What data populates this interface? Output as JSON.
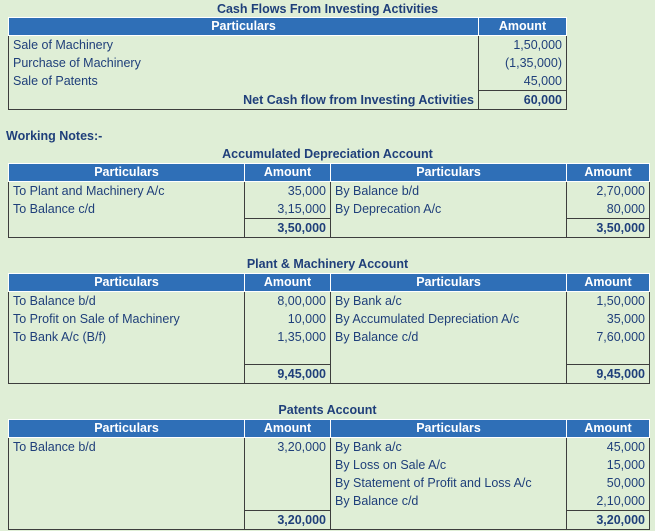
{
  "cash_flow": {
    "title": "Cash Flows From  Investing Activities",
    "headers": [
      "Particulars",
      "Amount"
    ],
    "rows": [
      {
        "particular": "Sale of Machinery",
        "amount": "1,50,000"
      },
      {
        "particular": "Purchase of Machinery",
        "amount": "(1,35,000)"
      },
      {
        "particular": "Sale of Patents",
        "amount": "45,000"
      }
    ],
    "net_label": "Net Cash flow from Investing Activities",
    "net_amount": "60,000"
  },
  "working_notes_label": "Working Notes:-",
  "accumulated_depreciation": {
    "title": "Accumulated Depreciation Account",
    "headers": [
      "Particulars",
      "Amount",
      "Particulars",
      "Amount"
    ],
    "rows": [
      {
        "dr_particular": "To Plant and Machinery A/c",
        "dr_amount": "35,000",
        "cr_particular": "By Balance b/d",
        "cr_amount": "2,70,000"
      },
      {
        "dr_particular": "To Balance c/d",
        "dr_amount": "3,15,000",
        "cr_particular": "By Deprecation A/c",
        "cr_amount": "80,000"
      }
    ],
    "dr_total": "3,50,000",
    "cr_total": "3,50,000"
  },
  "plant_machinery": {
    "title": "Plant & Machinery Account",
    "headers": [
      "Particulars",
      "Amount",
      "Particulars",
      "Amount"
    ],
    "rows": [
      {
        "dr_particular": "To Balance b/d",
        "dr_amount": "8,00,000",
        "cr_particular": "By Bank a/c",
        "cr_amount": "1,50,000"
      },
      {
        "dr_particular": "To Profit on Sale of Machinery",
        "dr_amount": "10,000",
        "cr_particular": "By Accumulated Depreciation A/c",
        "cr_amount": "35,000"
      },
      {
        "dr_particular": "To Bank A/c (B/f)",
        "dr_amount": "1,35,000",
        "cr_particular": "By Balance c/d",
        "cr_amount": "7,60,000"
      }
    ],
    "dr_total": "9,45,000",
    "cr_total": "9,45,000"
  },
  "patents": {
    "title": "Patents Account",
    "headers": [
      "Particulars",
      "Amount",
      "Particulars",
      "Amount"
    ],
    "rows": [
      {
        "dr_particular": "To Balance b/d",
        "dr_amount": "3,20,000",
        "cr_particular": "By Bank a/c",
        "cr_amount": "45,000"
      },
      {
        "dr_particular": "",
        "dr_amount": "",
        "cr_particular": "By Loss on Sale A/c",
        "cr_amount": "15,000"
      },
      {
        "dr_particular": "",
        "dr_amount": "",
        "cr_particular": "By Statement of Profit and Loss A/c",
        "cr_amount": "50,000"
      },
      {
        "dr_particular": "",
        "dr_amount": "",
        "cr_particular": "By Balance c/d",
        "cr_amount": "2,10,000"
      }
    ],
    "dr_total": "3,20,000",
    "cr_total": "3,20,000"
  }
}
